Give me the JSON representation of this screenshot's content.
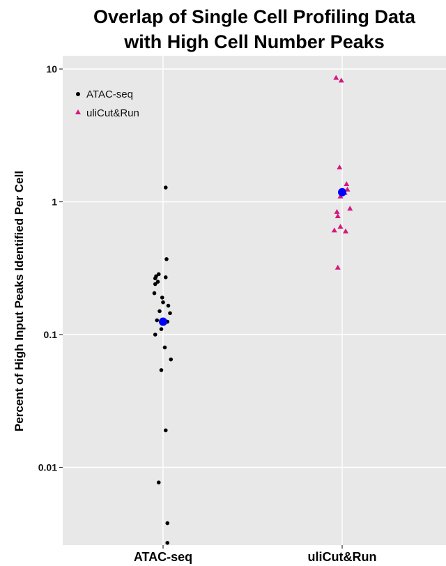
{
  "chart_data": {
    "type": "scatter",
    "title_lines": [
      "Overlap of Single Cell Profiling Data",
      "with High Cell Number Peaks"
    ],
    "xlabel": "",
    "ylabel": "Percent of High Input Peaks Identified Per Cell",
    "y_scale": "log10",
    "ylim": [
      0.0025,
      14
    ],
    "y_ticks": [
      0.01,
      0.1,
      1,
      10
    ],
    "y_tick_labels": [
      "0.01",
      "0.1",
      "1",
      "10"
    ],
    "categories": [
      "ATAC-seq",
      "uliCut&Run"
    ],
    "grid": true,
    "legend_position": "top-left",
    "colors": {
      "panel": "#e8e8e8",
      "grid": "#ffffff",
      "mean": "#0000ff"
    },
    "series": [
      {
        "name": "ATAC-seq",
        "category": "ATAC-seq",
        "marker": "circle",
        "color": "#000000",
        "points": [
          {
            "jitter": 0.03,
            "y": 1.28
          },
          {
            "jitter": 0.04,
            "y": 0.37
          },
          {
            "jitter": -0.08,
            "y": 0.275
          },
          {
            "jitter": -0.05,
            "y": 0.285
          },
          {
            "jitter": -0.09,
            "y": 0.265
          },
          {
            "jitter": 0.03,
            "y": 0.27
          },
          {
            "jitter": -0.06,
            "y": 0.25
          },
          {
            "jitter": -0.09,
            "y": 0.24
          },
          {
            "jitter": -0.1,
            "y": 0.205
          },
          {
            "jitter": -0.01,
            "y": 0.19
          },
          {
            "jitter": 0.0,
            "y": 0.175
          },
          {
            "jitter": 0.06,
            "y": 0.165
          },
          {
            "jitter": -0.04,
            "y": 0.15
          },
          {
            "jitter": 0.08,
            "y": 0.145
          },
          {
            "jitter": -0.07,
            "y": 0.128
          },
          {
            "jitter": 0.05,
            "y": 0.125
          },
          {
            "jitter": -0.02,
            "y": 0.11
          },
          {
            "jitter": -0.09,
            "y": 0.1
          },
          {
            "jitter": 0.02,
            "y": 0.08
          },
          {
            "jitter": 0.09,
            "y": 0.065
          },
          {
            "jitter": -0.02,
            "y": 0.054
          },
          {
            "jitter": 0.03,
            "y": 0.019
          },
          {
            "jitter": -0.05,
            "y": 0.0077
          },
          {
            "jitter": 0.05,
            "y": 0.0038
          },
          {
            "jitter": 0.05,
            "y": 0.0027
          }
        ],
        "mean": 0.125
      },
      {
        "name": "uliCut&Run",
        "category": "uliCut&Run",
        "marker": "triangle",
        "color": "#d4187d",
        "points": [
          {
            "jitter": -0.07,
            "y": 8.6
          },
          {
            "jitter": -0.01,
            "y": 8.2
          },
          {
            "jitter": -0.03,
            "y": 1.82
          },
          {
            "jitter": 0.05,
            "y": 1.36
          },
          {
            "jitter": 0.06,
            "y": 1.24
          },
          {
            "jitter": 0.03,
            "y": 1.17
          },
          {
            "jitter": -0.02,
            "y": 1.1
          },
          {
            "jitter": 0.09,
            "y": 0.89
          },
          {
            "jitter": -0.06,
            "y": 0.84
          },
          {
            "jitter": -0.05,
            "y": 0.78
          },
          {
            "jitter": -0.02,
            "y": 0.65
          },
          {
            "jitter": -0.09,
            "y": 0.61
          },
          {
            "jitter": 0.04,
            "y": 0.6
          },
          {
            "jitter": -0.05,
            "y": 0.32
          }
        ],
        "mean": 1.18
      }
    ]
  }
}
